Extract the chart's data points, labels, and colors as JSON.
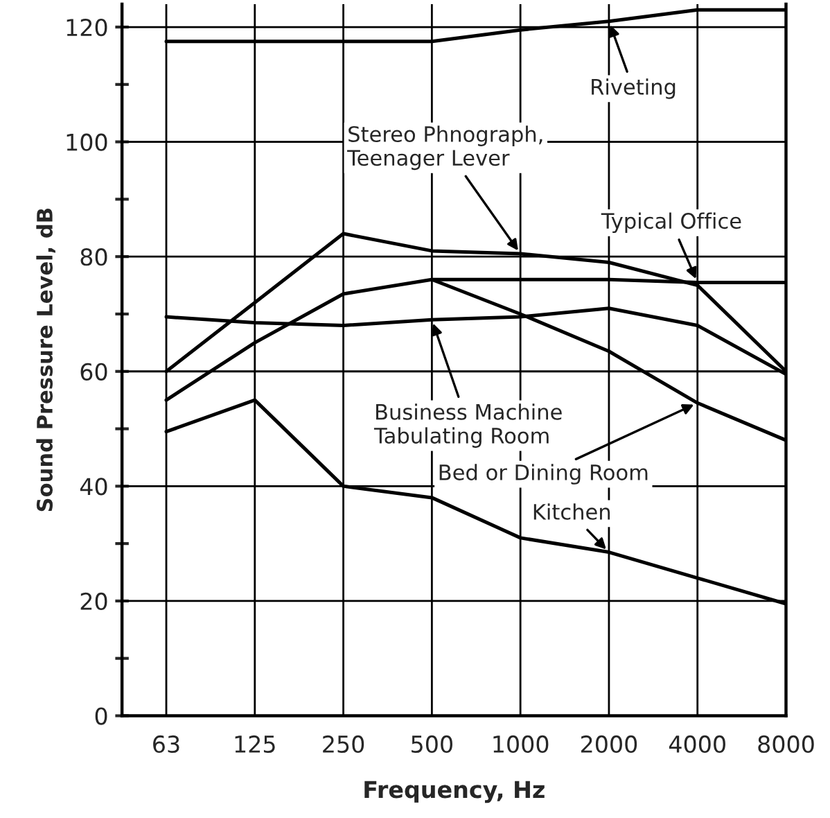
{
  "chart_data": {
    "type": "line",
    "xlabel": "Frequency, Hz",
    "ylabel": "Sound Pressure Level, dB",
    "categories": [
      "63",
      "125",
      "250",
      "500",
      "1000",
      "2000",
      "4000",
      "8000"
    ],
    "series": [
      {
        "color": "#000000",
        "values": [
          117.5,
          117.5,
          117.5,
          117.5,
          119.5,
          121,
          123,
          123
        ]
      },
      {
        "color": "#000000",
        "values": [
          60,
          72,
          84,
          81,
          80.5,
          79,
          75,
          60
        ]
      },
      {
        "color": "#000000",
        "values": [
          null,
          null,
          null,
          76,
          76,
          76,
          75.5,
          75.5
        ]
      },
      {
        "color": "#000000",
        "values": [
          69.5,
          68.5,
          68,
          69,
          69.5,
          71,
          68,
          59.5
        ]
      },
      {
        "color": "#000000",
        "values": [
          55,
          65,
          73.5,
          76,
          70,
          63.5,
          54.5,
          48
        ]
      },
      {
        "color": "#000000",
        "values": [
          49.5,
          55,
          40,
          38,
          31,
          28.5,
          24,
          19.5
        ]
      }
    ],
    "ylim": [
      0,
      124
    ],
    "yticks": [
      0,
      {
        "value": 10,
        "label": null
      },
      20,
      {
        "value": 30,
        "label": null
      },
      40,
      {
        "value": 50,
        "label": null
      },
      60,
      {
        "value": 70,
        "label": null
      },
      80,
      {
        "value": 90,
        "label": null
      },
      100,
      {
        "value": 110,
        "label": null
      },
      120
    ],
    "grid": true,
    "marker": "none",
    "line_style": "solid",
    "legend": false,
    "annotations": [
      {
        "text": "Riveting",
        "x": "2000",
        "y": 121
      },
      {
        "text": "Stereo Phnograph,\nTeenager Lever",
        "x": "1000",
        "y": 80.5
      },
      {
        "text": "Typical Office",
        "x": "4000",
        "y": 75.5
      },
      {
        "text": "Business Machine\nTabulating Room",
        "x": "500",
        "y": 69
      },
      {
        "text": "Bed or Dining Room",
        "x": "4000",
        "y": 54.5
      },
      {
        "text": "Kitchen",
        "x": "2000",
        "y": 28.5
      }
    ]
  }
}
